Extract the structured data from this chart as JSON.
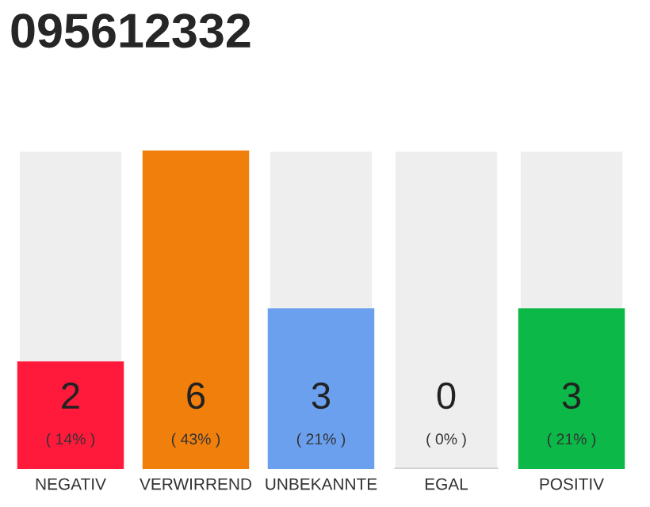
{
  "chart_data": {
    "type": "bar",
    "title": "095612332",
    "categories": [
      "NEGATIV",
      "VERWIRREND",
      "UNBEKANNTE",
      "EGAL",
      "POSITIV"
    ],
    "values": [
      2,
      6,
      3,
      0,
      3
    ],
    "colors": [
      "#ff1a3c",
      "#f17f0c",
      "#6ba0ef",
      "#d0d0d0",
      "#0cb848"
    ],
    "ylim": [
      0,
      6
    ],
    "data_labels": true,
    "annotations": [
      "( 14% )",
      "( 43% )",
      "( 21% )",
      "( 0% )",
      "( 21% )"
    ]
  }
}
